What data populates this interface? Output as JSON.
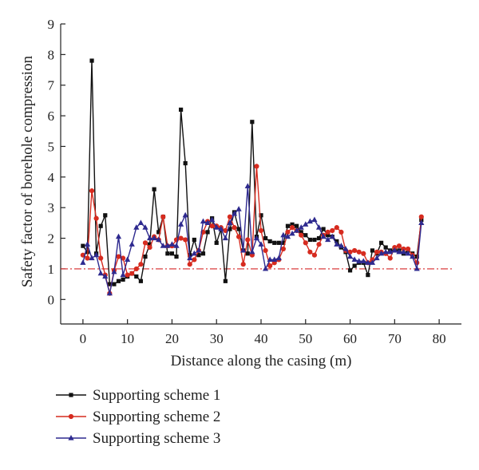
{
  "chart_data": {
    "type": "line",
    "title": "",
    "xlabel": "Distance along the casing (m)",
    "ylabel": "Safety factor of borehole compression",
    "xlim": [
      -5,
      85
    ],
    "ylim": [
      -0.8,
      9
    ],
    "xticks": [
      0,
      10,
      20,
      30,
      40,
      50,
      60,
      70,
      80
    ],
    "yticks": [
      0,
      1,
      2,
      3,
      4,
      5,
      6,
      7,
      8,
      9
    ],
    "grid": false,
    "legend_position": "bottom-left, below plot",
    "reference_line": {
      "y": 1.0,
      "style": "dash-dot",
      "color": "#d62728"
    },
    "series": [
      {
        "name": "Supporting scheme 1",
        "color": "#111111",
        "marker": "square",
        "points": [
          [
            0,
            1.75
          ],
          [
            1,
            1.55
          ],
          [
            2,
            7.8
          ],
          [
            3,
            1.5
          ],
          [
            4,
            2.4
          ],
          [
            5,
            2.75
          ],
          [
            6,
            0.5
          ],
          [
            7,
            0.5
          ],
          [
            8,
            0.6
          ],
          [
            9,
            0.65
          ],
          [
            10,
            0.75
          ],
          [
            11,
            0.85
          ],
          [
            12,
            0.75
          ],
          [
            13,
            0.6
          ],
          [
            14,
            1.4
          ],
          [
            15,
            1.8
          ],
          [
            16,
            3.6
          ],
          [
            17,
            2.2
          ],
          [
            18,
            2.7
          ],
          [
            19,
            1.5
          ],
          [
            20,
            1.5
          ],
          [
            21,
            1.4
          ],
          [
            22,
            6.2
          ],
          [
            23,
            4.45
          ],
          [
            24,
            1.45
          ],
          [
            25,
            1.95
          ],
          [
            26,
            1.45
          ],
          [
            27,
            1.5
          ],
          [
            28,
            2.2
          ],
          [
            29,
            2.65
          ],
          [
            30,
            1.85
          ],
          [
            31,
            2.3
          ],
          [
            32,
            0.6
          ],
          [
            33,
            2.3
          ],
          [
            34,
            2.85
          ],
          [
            35,
            2.3
          ],
          [
            36,
            1.6
          ],
          [
            37,
            1.5
          ],
          [
            38,
            5.8
          ],
          [
            39,
            2.05
          ],
          [
            40,
            2.75
          ],
          [
            41,
            2.0
          ],
          [
            42,
            1.9
          ],
          [
            43,
            1.85
          ],
          [
            44,
            1.85
          ],
          [
            45,
            1.85
          ],
          [
            46,
            2.4
          ],
          [
            47,
            2.45
          ],
          [
            48,
            2.4
          ],
          [
            49,
            2.2
          ],
          [
            50,
            2.1
          ],
          [
            51,
            1.95
          ],
          [
            52,
            1.95
          ],
          [
            53,
            2.0
          ],
          [
            54,
            2.3
          ],
          [
            55,
            2.1
          ],
          [
            56,
            2.05
          ],
          [
            57,
            1.9
          ],
          [
            58,
            1.7
          ],
          [
            59,
            1.55
          ],
          [
            60,
            0.95
          ],
          [
            61,
            1.1
          ],
          [
            62,
            1.2
          ],
          [
            63,
            1.2
          ],
          [
            64,
            0.8
          ],
          [
            65,
            1.6
          ],
          [
            66,
            1.5
          ],
          [
            67,
            1.85
          ],
          [
            68,
            1.7
          ],
          [
            69,
            1.6
          ],
          [
            70,
            1.6
          ],
          [
            71,
            1.6
          ],
          [
            72,
            1.5
          ],
          [
            73,
            1.6
          ],
          [
            74,
            1.5
          ],
          [
            75,
            1.4
          ],
          [
            76,
            2.6
          ]
        ]
      },
      {
        "name": "Supporting scheme 2",
        "color": "#d62b1f",
        "marker": "circle",
        "points": [
          [
            0,
            1.45
          ],
          [
            1,
            1.35
          ],
          [
            2,
            3.55
          ],
          [
            3,
            2.65
          ],
          [
            4,
            1.35
          ],
          [
            5,
            0.8
          ],
          [
            6,
            0.2
          ],
          [
            7,
            0.95
          ],
          [
            8,
            1.4
          ],
          [
            9,
            1.35
          ],
          [
            10,
            0.8
          ],
          [
            11,
            0.85
          ],
          [
            12,
            1.0
          ],
          [
            13,
            1.15
          ],
          [
            14,
            1.85
          ],
          [
            15,
            1.7
          ],
          [
            16,
            2.05
          ],
          [
            17,
            1.95
          ],
          [
            18,
            2.7
          ],
          [
            19,
            1.75
          ],
          [
            20,
            1.75
          ],
          [
            21,
            1.95
          ],
          [
            22,
            2.0
          ],
          [
            23,
            1.95
          ],
          [
            24,
            1.15
          ],
          [
            25,
            1.3
          ],
          [
            26,
            1.6
          ],
          [
            27,
            2.2
          ],
          [
            28,
            2.55
          ],
          [
            29,
            2.4
          ],
          [
            30,
            2.4
          ],
          [
            31,
            2.35
          ],
          [
            32,
            2.25
          ],
          [
            33,
            2.7
          ],
          [
            34,
            2.35
          ],
          [
            35,
            2.05
          ],
          [
            36,
            1.15
          ],
          [
            37,
            1.95
          ],
          [
            38,
            1.45
          ],
          [
            39,
            4.35
          ],
          [
            40,
            2.25
          ],
          [
            41,
            1.6
          ],
          [
            42,
            1.1
          ],
          [
            43,
            1.2
          ],
          [
            44,
            1.3
          ],
          [
            45,
            1.65
          ],
          [
            46,
            2.2
          ],
          [
            47,
            2.35
          ],
          [
            48,
            2.25
          ],
          [
            49,
            2.1
          ],
          [
            50,
            1.85
          ],
          [
            51,
            1.55
          ],
          [
            52,
            1.45
          ],
          [
            53,
            1.8
          ],
          [
            54,
            2.1
          ],
          [
            55,
            2.2
          ],
          [
            56,
            2.25
          ],
          [
            57,
            2.35
          ],
          [
            58,
            2.2
          ],
          [
            59,
            1.6
          ],
          [
            60,
            1.55
          ],
          [
            61,
            1.6
          ],
          [
            62,
            1.55
          ],
          [
            63,
            1.5
          ],
          [
            64,
            1.2
          ],
          [
            65,
            1.3
          ],
          [
            66,
            1.55
          ],
          [
            67,
            1.55
          ],
          [
            68,
            1.5
          ],
          [
            69,
            1.35
          ],
          [
            70,
            1.7
          ],
          [
            71,
            1.75
          ],
          [
            72,
            1.65
          ],
          [
            73,
            1.65
          ],
          [
            74,
            1.45
          ],
          [
            75,
            1.2
          ],
          [
            76,
            2.7
          ]
        ]
      },
      {
        "name": "Supporting scheme 3",
        "color": "#2e2a8f",
        "marker": "triangle",
        "points": [
          [
            0,
            1.2
          ],
          [
            1,
            1.8
          ],
          [
            2,
            1.35
          ],
          [
            3,
            1.45
          ],
          [
            4,
            0.85
          ],
          [
            5,
            0.75
          ],
          [
            6,
            0.2
          ],
          [
            7,
            0.9
          ],
          [
            8,
            2.05
          ],
          [
            9,
            0.8
          ],
          [
            10,
            1.3
          ],
          [
            11,
            1.8
          ],
          [
            12,
            2.35
          ],
          [
            13,
            2.5
          ],
          [
            14,
            2.35
          ],
          [
            15,
            2.0
          ],
          [
            16,
            2.0
          ],
          [
            17,
            1.95
          ],
          [
            18,
            1.75
          ],
          [
            19,
            1.75
          ],
          [
            20,
            1.8
          ],
          [
            21,
            1.75
          ],
          [
            22,
            2.45
          ],
          [
            23,
            2.75
          ],
          [
            24,
            1.35
          ],
          [
            25,
            1.5
          ],
          [
            26,
            1.6
          ],
          [
            27,
            2.55
          ],
          [
            28,
            2.5
          ],
          [
            29,
            2.6
          ],
          [
            30,
            2.35
          ],
          [
            31,
            2.3
          ],
          [
            32,
            2.0
          ],
          [
            33,
            2.5
          ],
          [
            34,
            2.8
          ],
          [
            35,
            2.95
          ],
          [
            36,
            1.6
          ],
          [
            37,
            3.7
          ],
          [
            38,
            1.55
          ],
          [
            39,
            2.0
          ],
          [
            40,
            1.8
          ],
          [
            41,
            1.0
          ],
          [
            42,
            1.3
          ],
          [
            43,
            1.3
          ],
          [
            44,
            1.35
          ],
          [
            45,
            2.1
          ],
          [
            46,
            2.05
          ],
          [
            47,
            2.15
          ],
          [
            48,
            2.25
          ],
          [
            49,
            2.35
          ],
          [
            50,
            2.45
          ],
          [
            51,
            2.55
          ],
          [
            52,
            2.6
          ],
          [
            53,
            2.35
          ],
          [
            54,
            2.05
          ],
          [
            55,
            1.95
          ],
          [
            56,
            2.05
          ],
          [
            57,
            1.8
          ],
          [
            58,
            1.75
          ],
          [
            59,
            1.65
          ],
          [
            60,
            1.4
          ],
          [
            61,
            1.3
          ],
          [
            62,
            1.25
          ],
          [
            63,
            1.25
          ],
          [
            64,
            1.2
          ],
          [
            65,
            1.2
          ],
          [
            66,
            1.35
          ],
          [
            67,
            1.5
          ],
          [
            68,
            1.55
          ],
          [
            69,
            1.55
          ],
          [
            70,
            1.6
          ],
          [
            71,
            1.55
          ],
          [
            72,
            1.55
          ],
          [
            73,
            1.5
          ],
          [
            74,
            1.4
          ],
          [
            75,
            1.0
          ],
          [
            76,
            2.5
          ]
        ]
      }
    ]
  }
}
